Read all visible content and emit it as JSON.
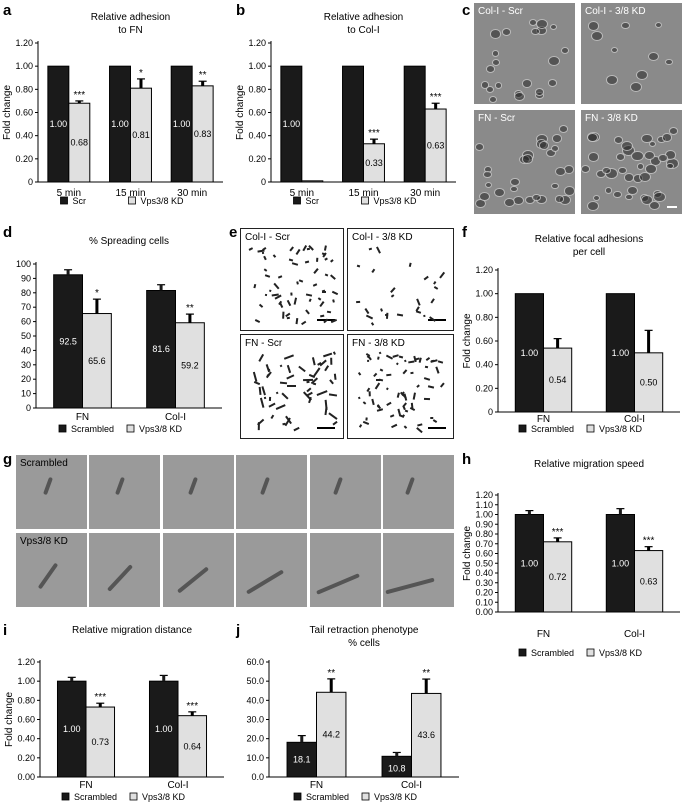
{
  "panel_labels": [
    "a",
    "b",
    "c",
    "d",
    "e",
    "f",
    "g",
    "h",
    "i",
    "j"
  ],
  "colors": {
    "scr": "#1a1a1a",
    "kd": "#e0e0e0",
    "micro_bg": "#8a8a8a"
  },
  "chart_data": [
    {
      "id": "a",
      "type": "bar",
      "title": "Relative adhesion\nto FN",
      "ylabel": "Fold change",
      "ylim": [
        0,
        1.2
      ],
      "yticks": [
        "0",
        "0.20",
        "0.40",
        "0.60",
        "0.80",
        "1.00",
        "1.20"
      ],
      "categories": [
        "5 min",
        "15 min",
        "30 min"
      ],
      "series": [
        {
          "name": "Scr",
          "values": [
            1.0,
            1.0,
            1.0
          ],
          "errors": [
            0,
            0,
            0
          ],
          "labels": [
            "1.00",
            "1.00",
            "1.00"
          ]
        },
        {
          "name": "Vps3/8 KD",
          "values": [
            0.68,
            0.81,
            0.83
          ],
          "errors": [
            0.02,
            0.08,
            0.04
          ],
          "labels": [
            "0.68",
            "0.81",
            "0.83"
          ]
        }
      ],
      "significance": [
        "***",
        "*",
        "**"
      ]
    },
    {
      "id": "b",
      "type": "bar",
      "title": "Relative adhesion\nto Col-I",
      "ylabel": "Fold change",
      "ylim": [
        0,
        1.2
      ],
      "yticks": [
        "0",
        "0.20",
        "0.40",
        "0.60",
        "0.80",
        "1.00",
        "1.20"
      ],
      "categories": [
        "5 min",
        "15 min",
        "30 min"
      ],
      "series": [
        {
          "name": "Scr",
          "values": [
            1.0,
            1.0,
            1.0
          ],
          "errors": [
            0,
            0,
            0
          ],
          "labels": [
            "1.00",
            "",
            ""
          ]
        },
        {
          "name": "Vps3/8 KD",
          "values": [
            0.01,
            0.33,
            0.63
          ],
          "errors": [
            0,
            0.04,
            0.05
          ],
          "labels": [
            "",
            "0.33",
            "0.63"
          ]
        }
      ],
      "significance": [
        "",
        "***",
        "***"
      ]
    },
    {
      "id": "d",
      "type": "bar",
      "title": "% Spreading cells",
      "ylabel": "",
      "ylim": [
        0,
        100
      ],
      "yticks": [
        "0",
        "10",
        "20",
        "30",
        "40",
        "50",
        "60",
        "70",
        "80",
        "90",
        "100"
      ],
      "categories": [
        "FN",
        "Col-I"
      ],
      "series": [
        {
          "name": "Scrambled",
          "values": [
            92.5,
            81.6
          ],
          "errors": [
            3.5,
            4
          ],
          "labels": [
            "92.5",
            "81.6"
          ]
        },
        {
          "name": "Vps3/8 KD",
          "values": [
            65.6,
            59.2
          ],
          "errors": [
            10,
            6
          ],
          "labels": [
            "65.6",
            "59.2"
          ]
        }
      ],
      "significance": [
        "*",
        "**"
      ]
    },
    {
      "id": "f",
      "type": "bar",
      "title": "Relative focal adhesions\nper cell",
      "ylabel": "Fold change",
      "ylim": [
        0,
        1.2
      ],
      "yticks": [
        "0",
        "0.20",
        "0.40",
        "0.60",
        "0.80",
        "1.00",
        "1.20"
      ],
      "categories": [
        "FN",
        "Col-I"
      ],
      "series": [
        {
          "name": "Scrambled",
          "values": [
            1.0,
            1.0
          ],
          "errors": [
            0,
            0
          ],
          "labels": [
            "1.00",
            "1.00"
          ]
        },
        {
          "name": "Vps3/8 KD",
          "values": [
            0.54,
            0.5
          ],
          "errors": [
            0.08,
            0.19
          ],
          "labels": [
            "0.54",
            "0.50"
          ]
        }
      ],
      "significance": [
        "",
        ""
      ]
    },
    {
      "id": "h",
      "type": "bar",
      "title": "Relative migration speed",
      "ylabel": "Fold change",
      "ylim": [
        0,
        1.2
      ],
      "yticks": [
        "0.00",
        "0.10",
        "0.20",
        "0.30",
        "0.40",
        "0.50",
        "0.60",
        "0.70",
        "0.80",
        "0.90",
        "1.00",
        "1.10",
        "1.20"
      ],
      "categories": [
        "FN",
        "Col-I"
      ],
      "series": [
        {
          "name": "Scrambled",
          "values": [
            1.0,
            1.0
          ],
          "errors": [
            0.04,
            0.06
          ],
          "labels": [
            "1.00",
            "1.00"
          ]
        },
        {
          "name": "Vps3/8 KD",
          "values": [
            0.72,
            0.63
          ],
          "errors": [
            0.04,
            0.04
          ],
          "labels": [
            "0.72",
            "0.63"
          ]
        }
      ],
      "significance": [
        "***",
        "***"
      ]
    },
    {
      "id": "i",
      "type": "bar",
      "title": "Relative migration distance",
      "ylabel": "Fold change",
      "ylim": [
        0,
        1.2
      ],
      "yticks": [
        "0.00",
        "0.20",
        "0.40",
        "0.60",
        "0.80",
        "1.00",
        "1.20"
      ],
      "categories": [
        "FN",
        "Col-I"
      ],
      "series": [
        {
          "name": "Scrambled",
          "values": [
            1.0,
            1.0
          ],
          "errors": [
            0.04,
            0.06
          ],
          "labels": [
            "1.00",
            "1.00"
          ]
        },
        {
          "name": "Vps3/8 KD",
          "values": [
            0.73,
            0.64
          ],
          "errors": [
            0.04,
            0.04
          ],
          "labels": [
            "0.73",
            "0.64"
          ]
        }
      ],
      "significance": [
        "***",
        "***"
      ]
    },
    {
      "id": "j",
      "type": "bar",
      "title": "Tail retraction phenotype\n% cells",
      "ylabel": "",
      "ylim": [
        0,
        60
      ],
      "yticks": [
        "0.0",
        "10.0",
        "20.0",
        "30.0",
        "40.0",
        "50.0",
        "60.0"
      ],
      "categories": [
        "FN",
        "Col-I"
      ],
      "series": [
        {
          "name": "Scrambled",
          "values": [
            18.1,
            10.8
          ],
          "errors": [
            3.5,
            2
          ],
          "labels": [
            "18.1",
            "10.8"
          ]
        },
        {
          "name": "Vps3/8 KD",
          "values": [
            44.2,
            43.6
          ],
          "errors": [
            7,
            7.5
          ],
          "labels": [
            "44.2",
            "43.6"
          ]
        }
      ],
      "significance": [
        "**",
        "**"
      ]
    }
  ],
  "micrographs": {
    "c": [
      "Col-I - Scr",
      "Col-I - 3/8 KD",
      "FN - Scr",
      "FN - 3/8 KD"
    ],
    "e": [
      "Col-I - Scr",
      "Col-I - 3/8 KD",
      "FN - Scr",
      "FN - 3/8 KD"
    ],
    "g": {
      "row1": "Scrambled",
      "row2": "Vps3/8 KD"
    }
  }
}
